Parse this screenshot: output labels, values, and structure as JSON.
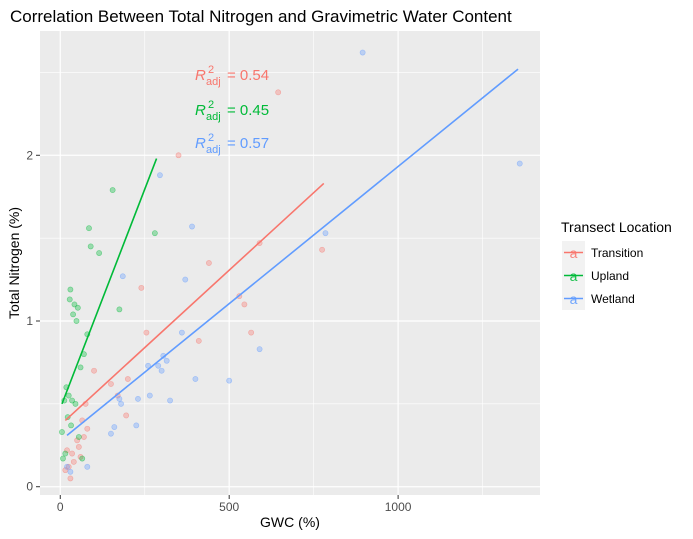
{
  "chart_data": {
    "type": "scatter",
    "title": "Correlation Between Total Nitrogen and Gravimetric Water Content",
    "xlabel": "GWC (%)",
    "ylabel": "Total Nitrogen (%)",
    "xlim": [
      -60,
      1420
    ],
    "ylim": [
      -0.05,
      2.75
    ],
    "x_ticks": [
      0,
      500,
      1000
    ],
    "x_tick_labels": [
      "0",
      "500",
      "1000"
    ],
    "y_ticks": [
      0,
      1,
      2
    ],
    "y_tick_labels": [
      "0",
      "1",
      "2"
    ],
    "grid": true,
    "legend": {
      "title": "Transect Location",
      "placement": "right",
      "entries": [
        "Transition",
        "Upland",
        "Wetland"
      ],
      "key_glyph": "a"
    },
    "series": [
      {
        "name": "Transition",
        "color": "#F8766D",
        "points": [
          [
            15,
            0.1
          ],
          [
            20,
            0.22
          ],
          [
            25,
            0.12
          ],
          [
            30,
            0.05
          ],
          [
            35,
            0.2
          ],
          [
            40,
            0.15
          ],
          [
            50,
            0.28
          ],
          [
            55,
            0.24
          ],
          [
            60,
            0.18
          ],
          [
            65,
            0.4
          ],
          [
            70,
            0.3
          ],
          [
            75,
            0.5
          ],
          [
            80,
            0.35
          ],
          [
            100,
            0.7
          ],
          [
            150,
            0.62
          ],
          [
            170,
            0.55
          ],
          [
            195,
            0.43
          ],
          [
            200,
            0.65
          ],
          [
            240,
            1.2
          ],
          [
            255,
            0.93
          ],
          [
            350,
            2.0
          ],
          [
            410,
            0.88
          ],
          [
            440,
            1.35
          ],
          [
            530,
            1.15
          ],
          [
            545,
            1.1
          ],
          [
            565,
            0.93
          ],
          [
            590,
            1.47
          ],
          [
            645,
            2.38
          ],
          [
            775,
            1.43
          ]
        ],
        "fit": {
          "x": [
            15,
            780
          ],
          "y": [
            0.4,
            1.83
          ]
        },
        "r2_adj": "= 0.54"
      },
      {
        "name": "Upland",
        "color": "#00BA38",
        "points": [
          [
            5,
            0.33
          ],
          [
            8,
            0.17
          ],
          [
            12,
            0.52
          ],
          [
            15,
            0.2
          ],
          [
            18,
            0.6
          ],
          [
            22,
            0.42
          ],
          [
            25,
            0.55
          ],
          [
            28,
            1.13
          ],
          [
            30,
            1.19
          ],
          [
            32,
            0.37
          ],
          [
            35,
            0.52
          ],
          [
            38,
            1.04
          ],
          [
            42,
            1.1
          ],
          [
            45,
            0.5
          ],
          [
            48,
            1.0
          ],
          [
            52,
            1.08
          ],
          [
            55,
            0.3
          ],
          [
            60,
            0.72
          ],
          [
            65,
            0.17
          ],
          [
            70,
            0.8
          ],
          [
            80,
            0.92
          ],
          [
            85,
            1.56
          ],
          [
            90,
            1.45
          ],
          [
            115,
            1.41
          ],
          [
            155,
            1.79
          ],
          [
            175,
            1.07
          ],
          [
            280,
            1.53
          ]
        ],
        "fit": {
          "x": [
            5,
            285
          ],
          "y": [
            0.5,
            1.98
          ]
        },
        "r2_adj": "= 0.45"
      },
      {
        "name": "Wetland",
        "color": "#619CFF",
        "points": [
          [
            20,
            0.12
          ],
          [
            30,
            0.09
          ],
          [
            80,
            0.12
          ],
          [
            150,
            0.32
          ],
          [
            160,
            0.36
          ],
          [
            175,
            0.53
          ],
          [
            180,
            0.5
          ],
          [
            185,
            1.27
          ],
          [
            225,
            0.37
          ],
          [
            230,
            0.53
          ],
          [
            260,
            0.73
          ],
          [
            265,
            0.55
          ],
          [
            290,
            0.73
          ],
          [
            295,
            1.88
          ],
          [
            300,
            0.7
          ],
          [
            305,
            0.79
          ],
          [
            315,
            0.76
          ],
          [
            325,
            0.52
          ],
          [
            360,
            0.93
          ],
          [
            370,
            1.25
          ],
          [
            390,
            1.57
          ],
          [
            400,
            0.65
          ],
          [
            500,
            0.64
          ],
          [
            590,
            0.83
          ],
          [
            785,
            1.53
          ],
          [
            895,
            2.62
          ],
          [
            1360,
            1.95
          ]
        ],
        "fit": {
          "x": [
            20,
            1355
          ],
          "y": [
            0.31,
            2.52
          ]
        },
        "r2_adj": "= 0.57"
      }
    ]
  }
}
